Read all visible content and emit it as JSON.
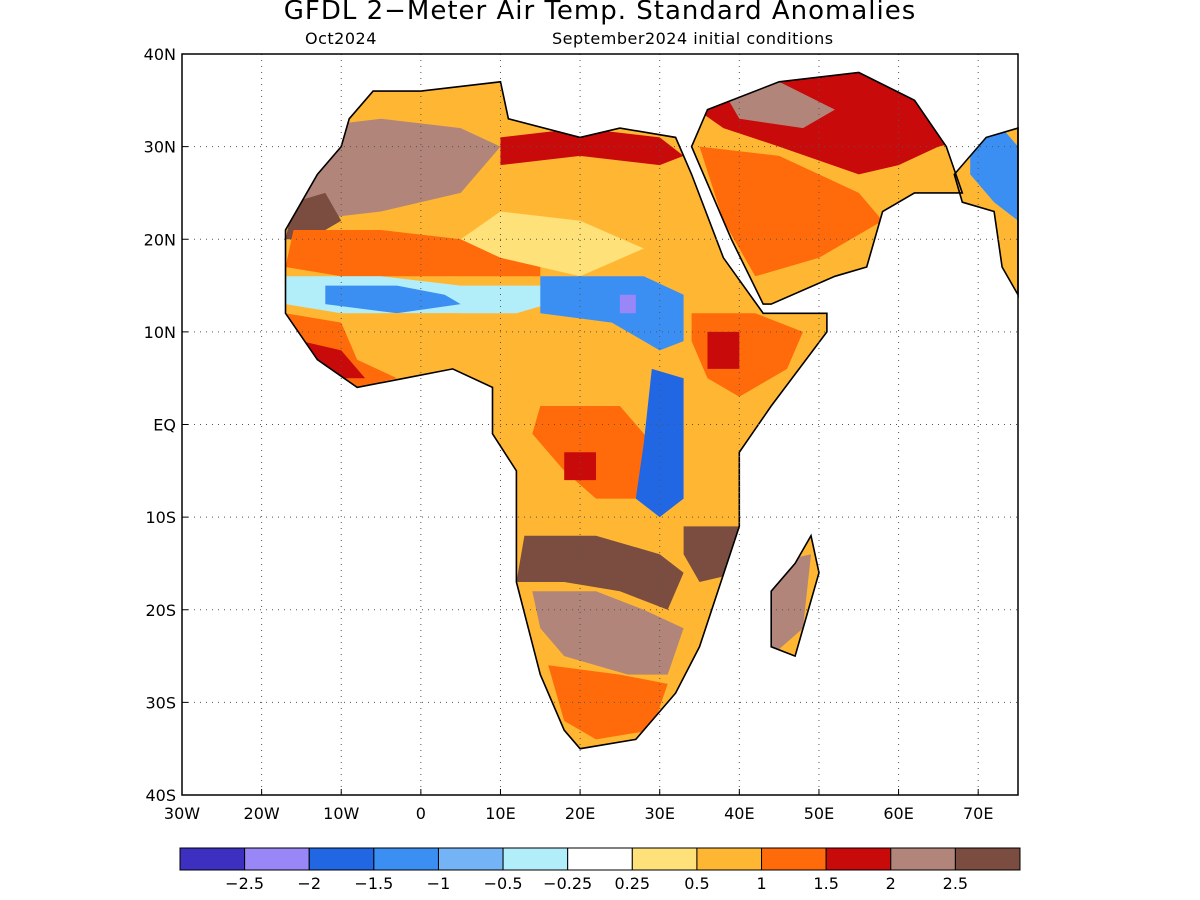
{
  "title": "GFDL 2−Meter Air Temp. Standard Anomalies",
  "subtitle_left": "Oct2024",
  "subtitle_right": "September2024 initial conditions",
  "map": {
    "lon_range": [
      -30,
      75
    ],
    "lat_range": [
      -40,
      40
    ],
    "grid": "dotted",
    "y_ticks": [
      {
        "value": 40,
        "label": "40N"
      },
      {
        "value": 30,
        "label": "30N"
      },
      {
        "value": 20,
        "label": "20N"
      },
      {
        "value": 10,
        "label": "10N"
      },
      {
        "value": 0,
        "label": "EQ"
      },
      {
        "value": -10,
        "label": "10S"
      },
      {
        "value": -20,
        "label": "20S"
      },
      {
        "value": -30,
        "label": "30S"
      },
      {
        "value": -40,
        "label": "40S"
      }
    ],
    "x_ticks": [
      {
        "value": -30,
        "label": "30W"
      },
      {
        "value": -20,
        "label": "20W"
      },
      {
        "value": -10,
        "label": "10W"
      },
      {
        "value": 0,
        "label": "0"
      },
      {
        "value": 10,
        "label": "10E"
      },
      {
        "value": 20,
        "label": "20E"
      },
      {
        "value": 30,
        "label": "30E"
      },
      {
        "value": 40,
        "label": "40E"
      },
      {
        "value": 50,
        "label": "50E"
      },
      {
        "value": 60,
        "label": "60E"
      },
      {
        "value": 70,
        "label": "70E"
      }
    ]
  },
  "colorbar": {
    "colors": [
      "#3d2fbf",
      "#9a87f7",
      "#2167e4",
      "#3b8ff3",
      "#75b3f7",
      "#b2eefa",
      "#ffffff",
      "#ffe17a",
      "#ffb733",
      "#ff6a0a",
      "#c90a0a",
      "#b2857a",
      "#7a4d40"
    ],
    "labels": [
      "−2.5",
      "−2",
      "−1.5",
      "−1",
      "−0.5",
      "−0.25",
      "0.25",
      "0.5",
      "1",
      "1.5",
      "2",
      "2.5"
    ]
  },
  "regions": [
    {
      "color": "#b2857a",
      "points": [
        [
          -15,
          32
        ],
        [
          -5,
          33
        ],
        [
          5,
          32
        ],
        [
          10,
          30
        ],
        [
          5,
          25
        ],
        [
          -5,
          23
        ],
        [
          -15,
          22
        ],
        [
          -16,
          26
        ]
      ]
    },
    {
      "color": "#7a4d40",
      "points": [
        [
          -16,
          24
        ],
        [
          -12,
          25
        ],
        [
          -10,
          22
        ],
        [
          -14,
          20
        ],
        [
          -17,
          20
        ]
      ]
    },
    {
      "color": "#ff6a0a",
      "points": [
        [
          -16,
          21
        ],
        [
          -5,
          21
        ],
        [
          5,
          20
        ],
        [
          10,
          19
        ],
        [
          15,
          20
        ],
        [
          15,
          16
        ],
        [
          5,
          16
        ],
        [
          -10,
          16
        ],
        [
          -17,
          17
        ]
      ]
    },
    {
      "color": "#ffb733",
      "points": [
        [
          10,
          27
        ],
        [
          20,
          29
        ],
        [
          30,
          28
        ],
        [
          32,
          24
        ],
        [
          25,
          20
        ],
        [
          15,
          21
        ],
        [
          8,
          24
        ]
      ]
    },
    {
      "color": "#c90a0a",
      "points": [
        [
          10,
          31
        ],
        [
          20,
          32
        ],
        [
          30,
          31
        ],
        [
          33,
          29
        ],
        [
          30,
          28
        ],
        [
          20,
          29
        ],
        [
          10,
          28
        ]
      ]
    },
    {
      "color": "#ffe17a",
      "points": [
        [
          10,
          23
        ],
        [
          20,
          22
        ],
        [
          28,
          19
        ],
        [
          20,
          16
        ],
        [
          10,
          18
        ],
        [
          5,
          20
        ]
      ]
    },
    {
      "color": "#b2eefa",
      "points": [
        [
          -17,
          16
        ],
        [
          -5,
          16
        ],
        [
          5,
          15
        ],
        [
          15,
          15
        ],
        [
          20,
          14
        ],
        [
          12,
          12
        ],
        [
          0,
          12
        ],
        [
          -10,
          12
        ],
        [
          -17,
          13
        ]
      ]
    },
    {
      "color": "#3b8ff3",
      "points": [
        [
          -12,
          15
        ],
        [
          -3,
          15
        ],
        [
          3,
          14
        ],
        [
          5,
          13
        ],
        [
          -3,
          12
        ],
        [
          -12,
          13
        ]
      ]
    },
    {
      "color": "#3b8ff3",
      "points": [
        [
          15,
          16
        ],
        [
          28,
          16
        ],
        [
          33,
          14
        ],
        [
          33,
          9
        ],
        [
          30,
          8
        ],
        [
          24,
          11
        ],
        [
          15,
          12
        ]
      ]
    },
    {
      "color": "#9a87f7",
      "points": [
        [
          25,
          14
        ],
        [
          27,
          14
        ],
        [
          27,
          12
        ],
        [
          25,
          12
        ]
      ]
    },
    {
      "color": "#ffb733",
      "points": [
        [
          -5,
          12
        ],
        [
          5,
          12
        ],
        [
          12,
          10
        ],
        [
          12,
          6
        ],
        [
          5,
          5
        ],
        [
          -2,
          6
        ],
        [
          -8,
          8
        ]
      ]
    },
    {
      "color": "#ff6a0a",
      "points": [
        [
          -17,
          12
        ],
        [
          -10,
          11
        ],
        [
          -8,
          7
        ],
        [
          -3,
          5
        ],
        [
          -8,
          4
        ],
        [
          -13,
          7
        ],
        [
          -16,
          10
        ]
      ]
    },
    {
      "color": "#c90a0a",
      "points": [
        [
          -15,
          9
        ],
        [
          -10,
          8
        ],
        [
          -7,
          5
        ],
        [
          -10,
          5
        ],
        [
          -14,
          7
        ]
      ]
    },
    {
      "color": "#ffb733",
      "points": [
        [
          10,
          7
        ],
        [
          20,
          7
        ],
        [
          30,
          4
        ],
        [
          25,
          2
        ],
        [
          15,
          2
        ],
        [
          9,
          4
        ]
      ]
    },
    {
      "color": "#ff6a0a",
      "points": [
        [
          15,
          2
        ],
        [
          25,
          2
        ],
        [
          29,
          -2
        ],
        [
          27,
          -8
        ],
        [
          22,
          -8
        ],
        [
          18,
          -5
        ],
        [
          14,
          -1
        ]
      ]
    },
    {
      "color": "#c90a0a",
      "points": [
        [
          18,
          -3
        ],
        [
          22,
          -3
        ],
        [
          22,
          -6
        ],
        [
          18,
          -6
        ]
      ]
    },
    {
      "color": "#2167e4",
      "points": [
        [
          29,
          6
        ],
        [
          33,
          5
        ],
        [
          33,
          -8
        ],
        [
          30,
          -10
        ],
        [
          27,
          -8
        ],
        [
          28,
          -2
        ]
      ]
    },
    {
      "color": "#ffb733",
      "points": [
        [
          12,
          -5
        ],
        [
          18,
          -6
        ],
        [
          22,
          -8
        ],
        [
          24,
          -12
        ],
        [
          20,
          -14
        ],
        [
          14,
          -14
        ],
        [
          12,
          -10
        ]
      ]
    },
    {
      "color": "#7a4d40",
      "points": [
        [
          13,
          -12
        ],
        [
          22,
          -12
        ],
        [
          30,
          -14
        ],
        [
          33,
          -16
        ],
        [
          31,
          -20
        ],
        [
          25,
          -18
        ],
        [
          18,
          -17
        ],
        [
          12,
          -17
        ]
      ]
    },
    {
      "color": "#b2857a",
      "points": [
        [
          14,
          -18
        ],
        [
          22,
          -18
        ],
        [
          28,
          -20
        ],
        [
          33,
          -22
        ],
        [
          31,
          -27
        ],
        [
          26,
          -27
        ],
        [
          18,
          -25
        ],
        [
          15,
          -22
        ]
      ]
    },
    {
      "color": "#ff6a0a",
      "points": [
        [
          16,
          -26
        ],
        [
          25,
          -27
        ],
        [
          31,
          -28
        ],
        [
          29,
          -33
        ],
        [
          22,
          -34
        ],
        [
          18,
          -32
        ]
      ]
    },
    {
      "color": "#7a4d40",
      "points": [
        [
          33,
          -11
        ],
        [
          40,
          -11
        ],
        [
          40,
          -16
        ],
        [
          35,
          -17
        ],
        [
          33,
          -14
        ]
      ]
    },
    {
      "color": "#b2857a",
      "points": [
        [
          44,
          -15
        ],
        [
          49,
          -14
        ],
        [
          48,
          -22
        ],
        [
          44,
          -25
        ],
        [
          43,
          -20
        ]
      ]
    },
    {
      "color": "#ff6a0a",
      "points": [
        [
          34,
          12
        ],
        [
          42,
          12
        ],
        [
          48,
          10
        ],
        [
          46,
          6
        ],
        [
          40,
          3
        ],
        [
          36,
          5
        ],
        [
          34,
          9
        ]
      ]
    },
    {
      "color": "#c90a0a",
      "points": [
        [
          36,
          10
        ],
        [
          40,
          10
        ],
        [
          40,
          6
        ],
        [
          36,
          6
        ]
      ]
    },
    {
      "color": "#ff6a0a",
      "points": [
        [
          35,
          30
        ],
        [
          45,
          29
        ],
        [
          55,
          25
        ],
        [
          58,
          22
        ],
        [
          50,
          18
        ],
        [
          42,
          16
        ],
        [
          38,
          22
        ]
      ]
    },
    {
      "color": "#c90a0a",
      "points": [
        [
          35,
          40
        ],
        [
          45,
          40
        ],
        [
          60,
          40
        ],
        [
          75,
          40
        ],
        [
          75,
          32
        ],
        [
          65,
          30
        ],
        [
          60,
          28
        ],
        [
          55,
          27
        ],
        [
          45,
          30
        ],
        [
          38,
          32
        ],
        [
          33,
          35
        ],
        [
          25,
          38
        ],
        [
          20,
          40
        ]
      ]
    },
    {
      "color": "#b2857a",
      "points": [
        [
          38,
          36
        ],
        [
          45,
          37
        ],
        [
          52,
          34
        ],
        [
          48,
          32
        ],
        [
          40,
          33
        ]
      ]
    },
    {
      "color": "#3b8ff3",
      "points": [
        [
          69,
          31
        ],
        [
          73,
          32
        ],
        [
          75,
          30
        ],
        [
          75,
          22
        ],
        [
          72,
          24
        ],
        [
          69,
          27
        ]
      ]
    }
  ]
}
